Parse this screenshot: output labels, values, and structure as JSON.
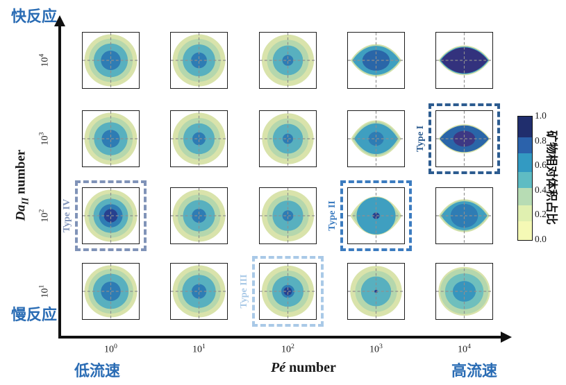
{
  "labels": {
    "fast_reaction": "快反应",
    "slow_reaction": "慢反应",
    "low_flow": "低流速",
    "high_flow": "高流速"
  },
  "axes": {
    "y_title_main": "Da",
    "y_title_sub": "II",
    "y_title_suffix": "number",
    "x_title_main": "Pé",
    "x_title_suffix": "number"
  },
  "chart_data": {
    "type": "contour-grid",
    "description": "5x4 grid of filled contour subplots of mineral relative volume fraction versus Péclet number (x) and Damköhler II number (y); color scale 0.0-1.0",
    "x_axis": {
      "label": "Pé number",
      "tick_base": "10",
      "tick_exponents": [
        0,
        1,
        2,
        3,
        4
      ],
      "annotation_low": "低流速",
      "annotation_high": "高流速"
    },
    "y_axis": {
      "label": "Da_II number",
      "tick_base": "10",
      "tick_exponents": [
        4,
        3,
        2,
        1
      ],
      "annotation_top": "快反应",
      "annotation_bottom": "慢反应"
    },
    "colorbar": {
      "title": "矿物相对体积占比",
      "ticks": [
        "1.0",
        "0.8",
        "0.6",
        "0.4",
        "0.2",
        "0.0"
      ],
      "range": [
        0.0,
        1.0
      ],
      "bands_bottom_to_top": [
        {
          "color": "#f5f9b5",
          "frac": 0.15
        },
        {
          "color": "#e0f0b0",
          "frac": 0.13
        },
        {
          "color": "#b7dcb4",
          "frac": 0.14
        },
        {
          "color": "#5fbcc3",
          "frac": 0.13
        },
        {
          "color": "#339ac2",
          "frac": 0.15
        },
        {
          "color": "#2b62ab",
          "frac": 0.13
        },
        {
          "color": "#202e6d",
          "frac": 0.17
        }
      ]
    },
    "regimes": [
      {
        "label": "Type I",
        "pe_exp": 4,
        "da_exp": 3,
        "color": "#2d5c90"
      },
      {
        "label": "Type II",
        "pe_exp": 3,
        "da_exp": 2,
        "color": "#3c7cc0"
      },
      {
        "label": "Type III",
        "pe_exp": 2,
        "da_exp": 1,
        "color": "#a9c9e7"
      },
      {
        "label": "Type IV",
        "pe_exp": 0,
        "da_exp": 2,
        "color": "#8093b8"
      }
    ],
    "cells": [
      {
        "da_exp": 4,
        "pe_exp": 0,
        "shape": "circular",
        "rings": [
          [
            "c",
            "#d9e3ab",
            0.96,
            0.96,
            0.15
          ],
          [
            "c",
            "#b5d7ad",
            0.8,
            0.8,
            0.3
          ],
          [
            "c",
            "#58b0bf",
            0.62,
            0.62,
            0.5
          ],
          [
            "c",
            "#2e7cb4",
            0.36,
            0.36,
            0.65
          ]
        ]
      },
      {
        "da_exp": 4,
        "pe_exp": 1,
        "shape": "circular",
        "rings": [
          [
            "c",
            "#d9e3ab",
            0.96,
            0.96,
            0.15
          ],
          [
            "c",
            "#b5d7ad",
            0.79,
            0.79,
            0.3
          ],
          [
            "c",
            "#58b0bf",
            0.59,
            0.59,
            0.5
          ],
          [
            "c",
            "#2e7cb4",
            0.29,
            0.29,
            0.65
          ]
        ]
      },
      {
        "da_exp": 4,
        "pe_exp": 2,
        "shape": "circular",
        "rings": [
          [
            "c",
            "#d9e3ab",
            0.95,
            0.95,
            0.15
          ],
          [
            "c",
            "#b5d7ad",
            0.76,
            0.76,
            0.3
          ],
          [
            "c",
            "#58b0bf",
            0.55,
            0.55,
            0.5
          ],
          [
            "c",
            "#2e7cb4",
            0.2,
            0.2,
            0.65
          ]
        ]
      },
      {
        "da_exp": 4,
        "pe_exp": 3,
        "shape": "lens",
        "rings": [
          [
            "l",
            "#d9e3ab",
            0.93,
            0.74,
            0.15
          ],
          [
            "l",
            "#b5d7ad",
            0.9,
            0.7,
            0.3
          ],
          [
            "l",
            "#3f9fc0",
            0.86,
            0.66,
            0.55
          ],
          [
            "c",
            "#2a66a8",
            0.5,
            0.38,
            0.7
          ]
        ]
      },
      {
        "da_exp": 4,
        "pe_exp": 4,
        "shape": "lens",
        "rings": [
          [
            "l",
            "#d9e3ab",
            0.94,
            0.68,
            0.15
          ],
          [
            "l",
            "#4aa6c0",
            0.9,
            0.63,
            0.5
          ],
          [
            "l",
            "#33327d",
            0.86,
            0.59,
            0.95
          ]
        ]
      },
      {
        "da_exp": 3,
        "pe_exp": 0,
        "shape": "circular",
        "rings": [
          [
            "c",
            "#d9e3ab",
            0.96,
            0.96,
            0.15
          ],
          [
            "c",
            "#b5d7ad",
            0.8,
            0.8,
            0.3
          ],
          [
            "c",
            "#58b0bf",
            0.61,
            0.61,
            0.5
          ],
          [
            "c",
            "#2e7cb4",
            0.33,
            0.33,
            0.65
          ]
        ]
      },
      {
        "da_exp": 3,
        "pe_exp": 1,
        "shape": "circular",
        "rings": [
          [
            "c",
            "#d9e3ab",
            0.96,
            0.96,
            0.15
          ],
          [
            "c",
            "#b5d7ad",
            0.77,
            0.77,
            0.3
          ],
          [
            "c",
            "#58b0bf",
            0.57,
            0.57,
            0.5
          ],
          [
            "c",
            "#2e7cb4",
            0.24,
            0.24,
            0.65
          ]
        ]
      },
      {
        "da_exp": 3,
        "pe_exp": 2,
        "shape": "circular",
        "rings": [
          [
            "c",
            "#d9e3ab",
            0.94,
            0.94,
            0.15
          ],
          [
            "c",
            "#b5d7ad",
            0.75,
            0.75,
            0.3
          ],
          [
            "c",
            "#58b0bf",
            0.55,
            0.55,
            0.5
          ],
          [
            "c",
            "#2e7cb4",
            0.19,
            0.19,
            0.65
          ]
        ]
      },
      {
        "da_exp": 3,
        "pe_exp": 3,
        "shape": "rounded-lens",
        "rings": [
          [
            "l",
            "#d9e3ab",
            0.92,
            0.84,
            0.15
          ],
          [
            "l",
            "#b5d7ad",
            0.87,
            0.78,
            0.3
          ],
          [
            "l",
            "#3f9fc0",
            0.8,
            0.7,
            0.55
          ],
          [
            "c",
            "#2e7cb4",
            0.28,
            0.26,
            0.65
          ]
        ]
      },
      {
        "da_exp": 3,
        "pe_exp": 4,
        "shape": "lens",
        "rings": [
          [
            "l",
            "#d9e3ab",
            0.94,
            0.66,
            0.15
          ],
          [
            "l",
            "#2a66a8",
            0.9,
            0.61,
            0.7
          ],
          [
            "c",
            "#3d3884",
            0.4,
            0.29,
            0.9
          ]
        ]
      },
      {
        "da_exp": 2,
        "pe_exp": 0,
        "shape": "circular",
        "rings": [
          [
            "c",
            "#d9e3ab",
            0.96,
            0.96,
            0.15
          ],
          [
            "c",
            "#b5d7ad",
            0.81,
            0.81,
            0.3
          ],
          [
            "c",
            "#58b0bf",
            0.63,
            0.63,
            0.5
          ],
          [
            "c",
            "#2e7cb4",
            0.43,
            0.43,
            0.65
          ],
          [
            "c",
            "#27418f",
            0.25,
            0.25,
            0.85
          ]
        ]
      },
      {
        "da_exp": 2,
        "pe_exp": 1,
        "shape": "circular",
        "rings": [
          [
            "c",
            "#d9e3ab",
            0.96,
            0.96,
            0.15
          ],
          [
            "c",
            "#b5d7ad",
            0.78,
            0.78,
            0.3
          ],
          [
            "c",
            "#58b0bf",
            0.58,
            0.58,
            0.5
          ],
          [
            "c",
            "#2e7cb4",
            0.26,
            0.26,
            0.65
          ]
        ]
      },
      {
        "da_exp": 2,
        "pe_exp": 2,
        "shape": "circular",
        "rings": [
          [
            "c",
            "#d9e3ab",
            0.95,
            0.95,
            0.15
          ],
          [
            "c",
            "#b5d7ad",
            0.76,
            0.76,
            0.3
          ],
          [
            "c",
            "#58b0bf",
            0.56,
            0.56,
            0.5
          ],
          [
            "c",
            "#2e7cb4",
            0.2,
            0.2,
            0.65
          ]
        ]
      },
      {
        "da_exp": 2,
        "pe_exp": 3,
        "shape": "rounded-lens",
        "rings": [
          [
            "l",
            "#d9e3ab",
            0.94,
            0.88,
            0.15
          ],
          [
            "l",
            "#b5d7ad",
            0.87,
            0.81,
            0.3
          ],
          [
            "c",
            "#3f9fc0",
            0.71,
            0.69,
            0.55
          ],
          [
            "c",
            "#27418f",
            0.13,
            0.12,
            0.85
          ]
        ]
      },
      {
        "da_exp": 2,
        "pe_exp": 4,
        "shape": "lens",
        "rings": [
          [
            "l",
            "#d9e3ab",
            0.93,
            0.75,
            0.15
          ],
          [
            "l",
            "#b5d7ad",
            0.89,
            0.71,
            0.3
          ],
          [
            "l",
            "#3f9fc0",
            0.84,
            0.66,
            0.55
          ],
          [
            "c",
            "#2e7cb4",
            0.5,
            0.44,
            0.65
          ]
        ]
      },
      {
        "da_exp": 1,
        "pe_exp": 0,
        "shape": "circular",
        "rings": [
          [
            "c",
            "#d9e3ab",
            0.96,
            0.96,
            0.15
          ],
          [
            "c",
            "#b5d7ad",
            0.82,
            0.82,
            0.3
          ],
          [
            "c",
            "#58b0bf",
            0.65,
            0.65,
            0.5
          ],
          [
            "c",
            "#2e7cb4",
            0.36,
            0.36,
            0.65
          ]
        ]
      },
      {
        "da_exp": 1,
        "pe_exp": 1,
        "shape": "circular",
        "rings": [
          [
            "c",
            "#d9e3ab",
            0.96,
            0.96,
            0.15
          ],
          [
            "c",
            "#b5d7ad",
            0.79,
            0.79,
            0.3
          ],
          [
            "c",
            "#58b0bf",
            0.61,
            0.61,
            0.5
          ],
          [
            "c",
            "#2e7cb4",
            0.27,
            0.27,
            0.65
          ]
        ]
      },
      {
        "da_exp": 1,
        "pe_exp": 2,
        "shape": "circular",
        "rings": [
          [
            "c",
            "#d9e3ab",
            0.95,
            0.95,
            0.15
          ],
          [
            "c",
            "#b5d7ad",
            0.77,
            0.77,
            0.3
          ],
          [
            "c",
            "#58b0bf",
            0.57,
            0.57,
            0.5
          ],
          [
            "c",
            "#2e7cb4",
            0.24,
            0.24,
            0.65
          ],
          [
            "c",
            "#27418f",
            0.15,
            0.15,
            0.85
          ]
        ]
      },
      {
        "da_exp": 1,
        "pe_exp": 3,
        "shape": "circular",
        "rings": [
          [
            "c",
            "#d9e3ab",
            0.94,
            0.94,
            0.15
          ],
          [
            "c",
            "#b5d7ad",
            0.76,
            0.76,
            0.3
          ],
          [
            "c",
            "#58b0bf",
            0.55,
            0.55,
            0.5
          ],
          [
            "c",
            "#27418f",
            0.06,
            0.06,
            0.85
          ]
        ]
      },
      {
        "da_exp": 1,
        "pe_exp": 4,
        "shape": "circular",
        "rings": [
          [
            "c",
            "#d9e3ab",
            0.94,
            0.9,
            0.15
          ],
          [
            "c",
            "#b5d7ad",
            0.88,
            0.84,
            0.3
          ],
          [
            "c",
            "#6fbfbd",
            0.7,
            0.66,
            0.45
          ],
          [
            "c",
            "#3795bd",
            0.42,
            0.38,
            0.55
          ]
        ]
      }
    ]
  }
}
